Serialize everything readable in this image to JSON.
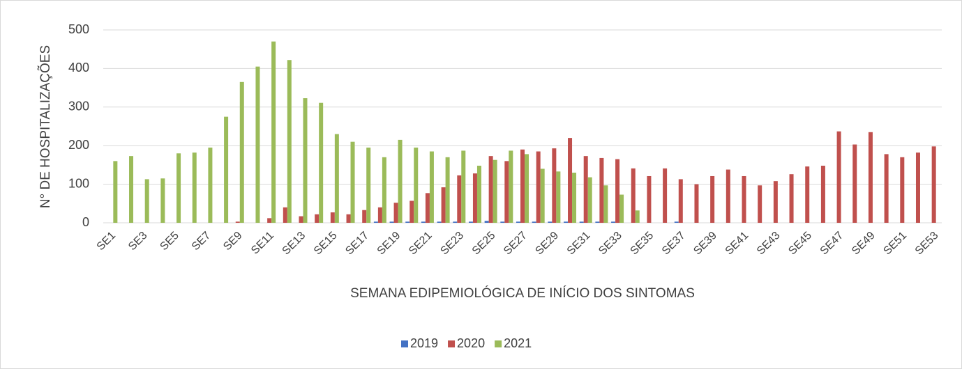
{
  "chart_data": {
    "type": "bar",
    "ylabel": "N° DE HOSPITALIZAÇÕES",
    "xlabel": "SEMANA EDIPEMIOLÓGICA DE INÍCIO DOS SINTOMAS",
    "categories": [
      "SE1",
      null,
      "SE3",
      null,
      "SE5",
      null,
      "SE7",
      null,
      "SE9",
      null,
      "SE11",
      null,
      "SE13",
      null,
      "SE15",
      null,
      "SE17",
      null,
      "SE19",
      null,
      "SE21",
      null,
      "SE23",
      null,
      "SE25",
      null,
      "SE27",
      null,
      "SE29",
      null,
      "SE31",
      null,
      "SE33",
      null,
      "SE35",
      null,
      "SE37",
      null,
      "SE39",
      null,
      "SE41",
      null,
      "SE43",
      null,
      "SE45",
      null,
      "SE47",
      null,
      "SE49",
      null,
      "SE51",
      null,
      "SE53"
    ],
    "series": [
      {
        "name": "2019",
        "color": "#4472c4",
        "values": [
          0,
          0,
          0,
          0,
          0,
          0,
          0,
          0,
          0,
          0,
          0,
          0,
          0,
          0,
          0,
          0,
          0,
          3,
          3,
          3,
          3,
          3,
          3,
          3,
          5,
          3,
          3,
          3,
          3,
          3,
          3,
          3,
          3,
          0,
          0,
          0,
          3,
          0,
          0,
          0,
          0,
          0,
          0,
          0,
          0,
          0,
          0,
          0,
          0,
          0,
          0,
          0,
          0
        ]
      },
      {
        "name": "2020",
        "color": "#c0504d",
        "values": [
          0,
          0,
          0,
          0,
          0,
          0,
          0,
          0,
          3,
          0,
          12,
          40,
          17,
          22,
          27,
          22,
          33,
          40,
          52,
          57,
          77,
          92,
          123,
          128,
          173,
          160,
          190,
          185,
          193,
          220,
          173,
          168,
          165,
          141,
          121,
          141,
          113,
          100,
          121,
          138,
          121,
          97,
          108,
          126,
          146,
          148,
          237,
          203,
          235,
          178,
          170,
          182,
          198
        ]
      },
      {
        "name": "2021",
        "color": "#9bbb59",
        "values": [
          160,
          173,
          113,
          115,
          180,
          182,
          195,
          275,
          365,
          405,
          470,
          422,
          323,
          311,
          230,
          210,
          195,
          170,
          215,
          195,
          185,
          170,
          187,
          148,
          163,
          187,
          178,
          140,
          133,
          130,
          118,
          97,
          73,
          32,
          0,
          0,
          0,
          0,
          0,
          0,
          0,
          0,
          0,
          0,
          0,
          0,
          0,
          0,
          0,
          0,
          0,
          0,
          0
        ]
      }
    ],
    "ylim": [
      0,
      500
    ],
    "yticks": [
      0,
      100,
      200,
      300,
      400,
      500
    ],
    "grid": true,
    "legend": "bottom"
  }
}
